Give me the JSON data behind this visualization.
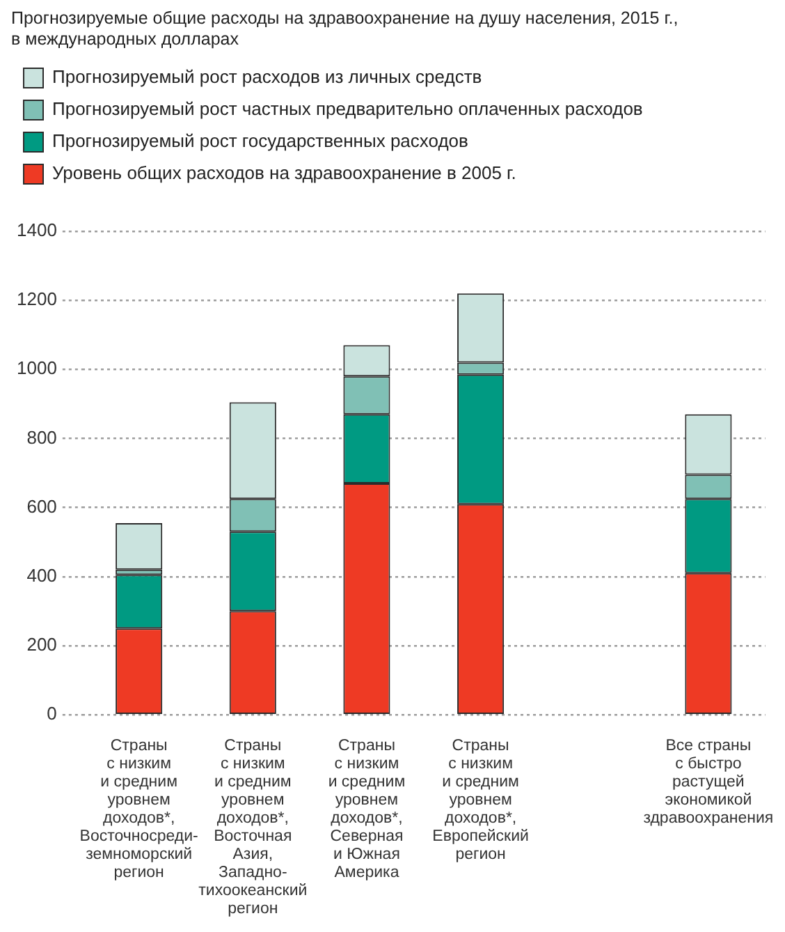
{
  "chart_data": {
    "type": "bar",
    "title": "Прогнозируемые общие расходы на здравоохранение на душу населения, 2015 г.,\nв международных долларах",
    "stacked": true,
    "categories": [
      "Страны\nс низким\nи средним\nуровнем\nдоходов*,\nВосточносреди-\nземноморский\nрегион",
      "Страны\nс низким\nи средним\nуровнем\nдоходов*,\nВосточная\nАзия,\nЗападно-\nтихоокеанский\nрегион",
      "Страны\nс низким\nи средним\nуровнем\nдоходов*,\nСеверная\nи Южная\nАмерика",
      "Страны\nс низким\nи средним\nуровнем\nдоходов*,\nЕвропейский\nрегион",
      null,
      "Все страны\nс быстро\nрастущей\nэкономикой\nздравоохранения"
    ],
    "series": [
      {
        "name": "Уровень общих расходов на здравоохранение в 2005 г.",
        "color": "#ee3a24",
        "values": [
          250,
          300,
          670,
          610,
          null,
          410
        ]
      },
      {
        "name": "Прогнозируемый рост государственных расходов",
        "color": "#009a82",
        "values": [
          155,
          230,
          200,
          375,
          null,
          215
        ]
      },
      {
        "name": "Прогнозируемый рост частных предварительно оплаченных расходов",
        "color": "#80c0b5",
        "values": [
          15,
          95,
          110,
          35,
          null,
          70
        ]
      },
      {
        "name": "Прогнозируемый рост расходов из личных средств",
        "color": "#cae3de",
        "values": [
          135,
          280,
          90,
          200,
          null,
          175
        ]
      }
    ],
    "ylim": [
      0,
      1400
    ],
    "yticks": [
      0,
      200,
      400,
      600,
      800,
      1000,
      1200,
      1400
    ],
    "grid": "y",
    "legend": "top left"
  }
}
